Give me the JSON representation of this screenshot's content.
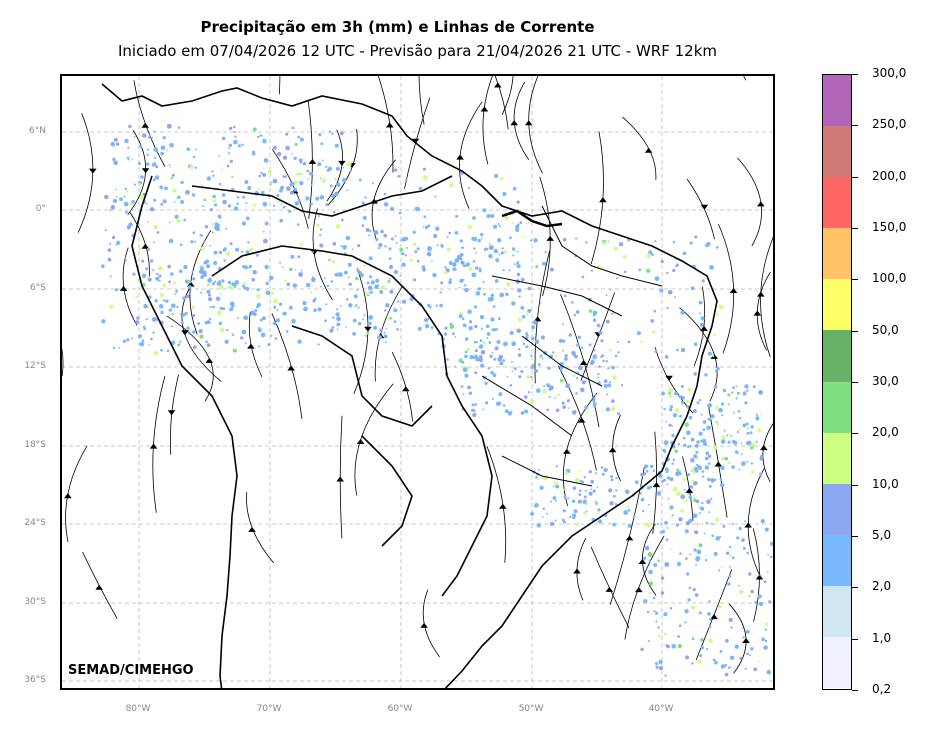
{
  "header": {
    "title": "Precipitação em 3h (mm) e Linhas de Corrente",
    "subtitle": "Iniciado em 07/04/2026 12 UTC - Previsão para 21/04/2026 21 UTC - WRF 12km"
  },
  "map": {
    "lat_labels": [
      "6°N",
      "0°",
      "6°S",
      "12°S",
      "18°S",
      "24°S",
      "30°S",
      "36°S"
    ],
    "lon_labels": [
      "80°W",
      "70°W",
      "60°W",
      "50°W",
      "40°W"
    ],
    "credit": "SEMAD/CIMEHGO",
    "grid": true
  },
  "colorbar": {
    "labels": [
      "300,0",
      "250,0",
      "200,0",
      "150,0",
      "100,0",
      "50,0",
      "30,0",
      "20,0",
      "10,0",
      "5,0",
      "2,0",
      "1,0",
      "0,2"
    ],
    "colors": [
      "#b266b8",
      "#d07a78",
      "#ff6666",
      "#ffc266",
      "#ffff66",
      "#66b266",
      "#80e080",
      "#ccff80",
      "#8ca8f0",
      "#78b8ff",
      "#d0e6f0",
      "#f0f0ff"
    ]
  }
}
